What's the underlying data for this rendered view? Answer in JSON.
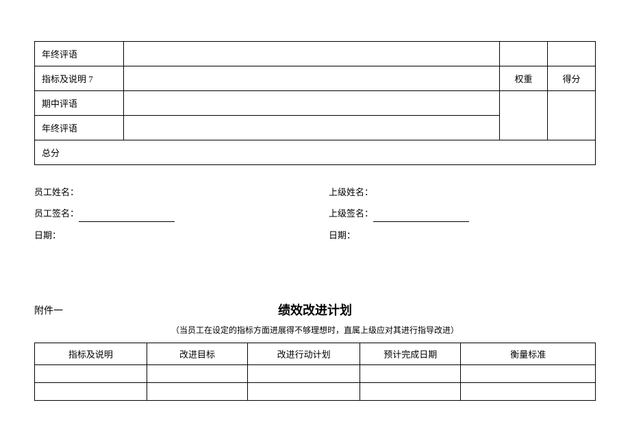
{
  "main_table": {
    "rows": [
      {
        "label": "年终评语",
        "content": "",
        "weight": "",
        "score": "",
        "has_weight_score": true,
        "merge_prev": true
      },
      {
        "label": "指标及说明 7",
        "content": "",
        "weight": "权重",
        "score": "得分",
        "has_weight_score": true,
        "merge_prev": false
      },
      {
        "label": "期中评语",
        "content": "",
        "weight": "",
        "score": "",
        "has_weight_score": true,
        "merge_prev": false,
        "rowspan_weight": 2
      },
      {
        "label": "年终评语",
        "content": "",
        "weight": "",
        "score": "",
        "has_weight_score": false,
        "merge_prev": true
      }
    ],
    "total_label": "总分"
  },
  "signatures": {
    "employee_name_label": "员工姓名：",
    "employee_name_value": "",
    "employee_sign_label": "员工签名：",
    "employee_date_label": "日期：",
    "supervisor_name_label": "上级姓名：",
    "supervisor_name_value": "",
    "supervisor_sign_label": "上级签名：",
    "supervisor_date_label": "日期："
  },
  "attachment": {
    "label": "附件一",
    "title": "绩效改进计划",
    "subtitle": "（当员工在设定的指标方面进展得不够理想时，直属上级应对其进行指导改进）",
    "columns": [
      "指标及说明",
      "改进目标",
      "改进行动计划",
      "预计完成日期",
      "衡量标准"
    ],
    "body_rows": 2
  },
  "style": {
    "font_family": "SimSun",
    "body_fontsize": 13,
    "title_fontsize": 18,
    "subtitle_fontsize": 12,
    "border_color": "#000000",
    "background_color": "#ffffff",
    "text_color": "#000000"
  }
}
